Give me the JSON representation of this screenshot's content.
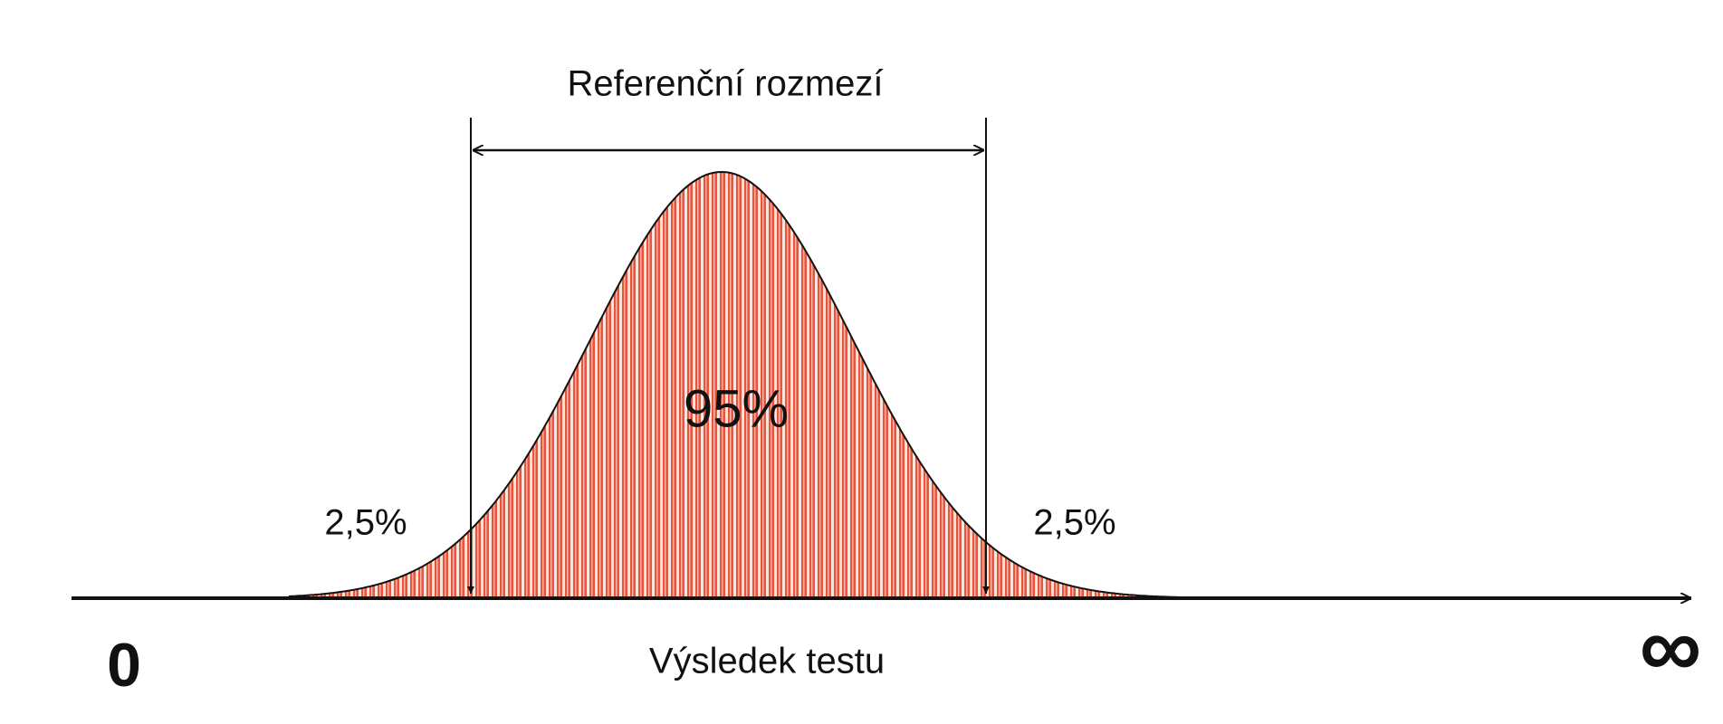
{
  "title": "Referenční rozmezí",
  "center_label": "95%",
  "left_tail_label": "2,5%",
  "right_tail_label": "2,5%",
  "axis_label": "Výsledek testu",
  "axis_start": "0",
  "axis_end": "∞"
}
